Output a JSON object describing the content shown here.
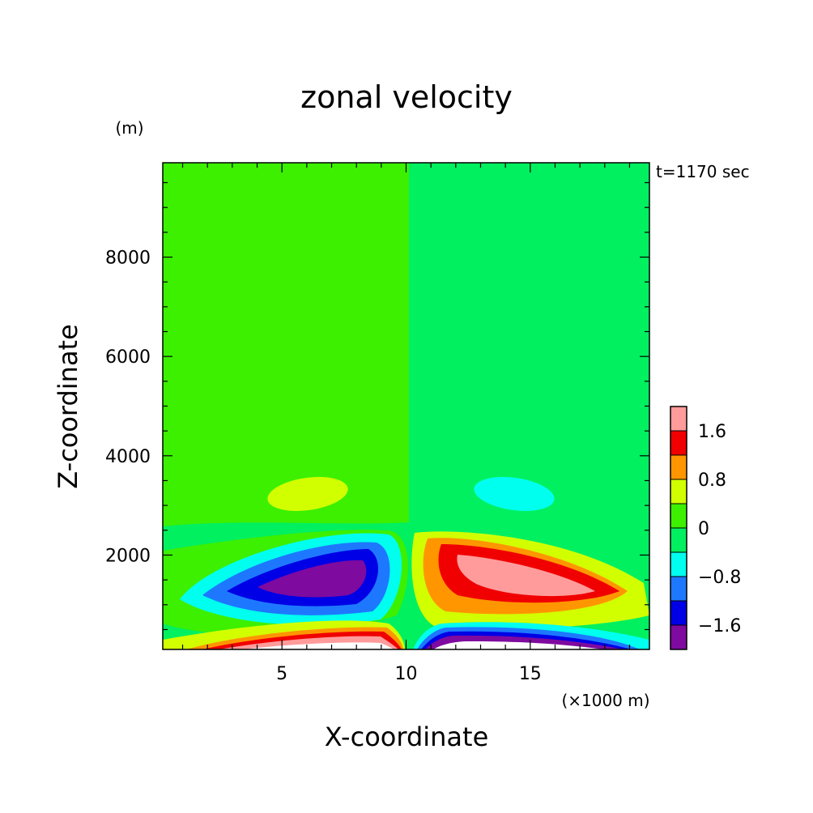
{
  "chart_data": {
    "type": "heatmap",
    "subtype": "filled-contour",
    "title": "zonal velocity",
    "xlabel": "X-coordinate",
    "ylabel": "Z-coordinate",
    "x_units": "(×1000 m)",
    "y_units": "(m)",
    "time_label": "t=1170 sec",
    "xlim": [
      0.2,
      19.8
    ],
    "ylim": [
      100,
      9900
    ],
    "x_ticks": [
      5,
      10,
      15
    ],
    "y_ticks": [
      2000,
      4000,
      6000,
      8000
    ],
    "colorbar": {
      "levels": [
        -2.0,
        -1.6,
        -1.2,
        -0.8,
        -0.4,
        0,
        0.4,
        0.8,
        1.2,
        1.6,
        2.0
      ],
      "labeled": [
        "-1.6",
        "-0.8",
        "0",
        "0.8",
        "1.6"
      ],
      "colors": [
        "#7f0a9f",
        "#0000e6",
        "#1e78ff",
        "#00ffee",
        "#00f060",
        "#3cf000",
        "#d2ff00",
        "#ff9600",
        "#f00000",
        "#ff9b9b"
      ]
    },
    "features": [
      {
        "region": "left lower jet",
        "x_range": [
          1,
          10
        ],
        "z_range": [
          900,
          2400
        ],
        "min_value": -2.0
      },
      {
        "region": "right lower jet",
        "x_range": [
          10,
          19.5
        ],
        "z_range": [
          900,
          2400
        ],
        "max_value": 2.0
      },
      {
        "region": "left near-surface",
        "x_range": [
          1,
          9.8
        ],
        "z_range": [
          100,
          500
        ],
        "max_value": 2.0
      },
      {
        "region": "right near-surface",
        "x_range": [
          10.2,
          19
        ],
        "z_range": [
          100,
          500
        ],
        "min_value": -2.0
      },
      {
        "region": "left mid blob",
        "x_range": [
          4,
          8
        ],
        "z_range": [
          2800,
          3600
        ],
        "value": 0.6
      },
      {
        "region": "right mid blob",
        "x_range": [
          12.8,
          16
        ],
        "z_range": [
          2800,
          3600
        ],
        "value": -0.6
      }
    ]
  }
}
